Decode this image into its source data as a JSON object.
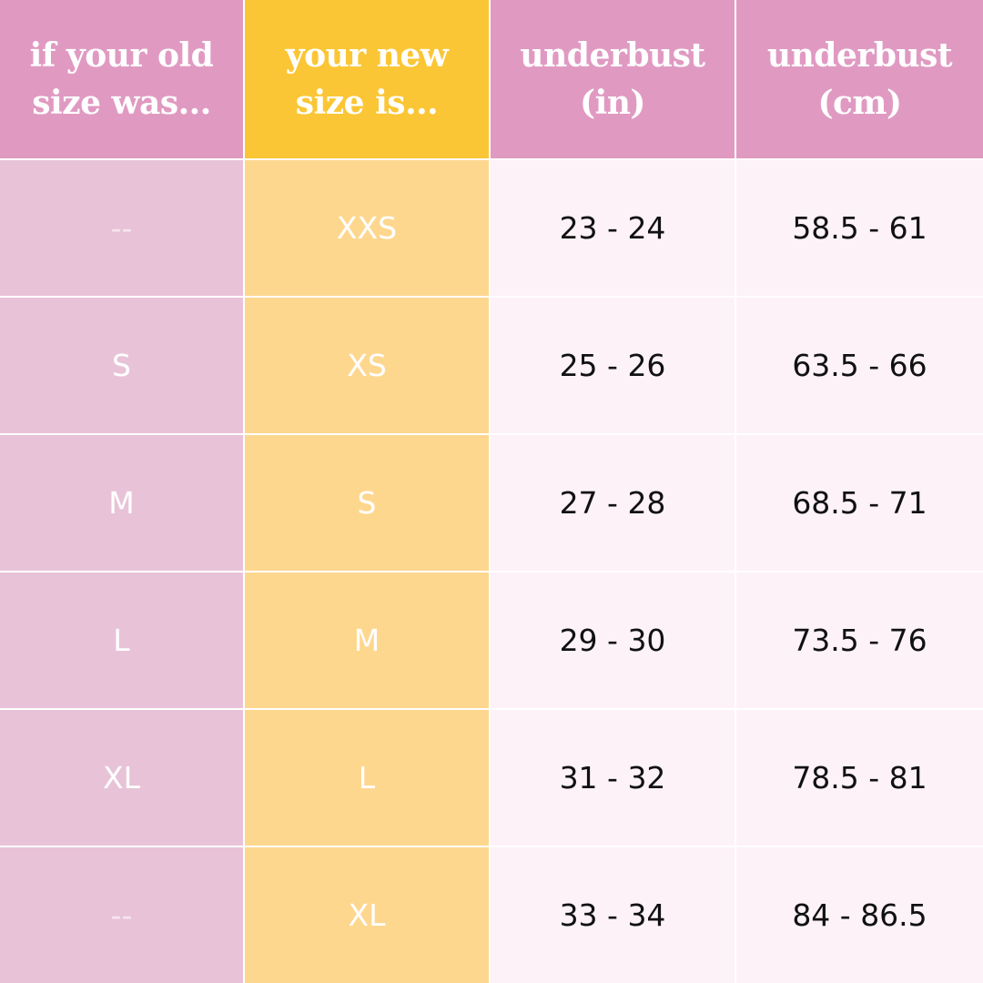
{
  "headers": {
    "old_size": [
      "if your old",
      "size was..."
    ],
    "new_size": [
      "your new",
      "size is..."
    ],
    "underbust_in": [
      "underbust",
      "(in)"
    ],
    "underbust_cm": [
      "underbust",
      "(cm)"
    ]
  },
  "rows": [
    {
      "old": "--",
      "new": "XXS",
      "in": "23 - 24",
      "cm": "58.5 - 61"
    },
    {
      "old": "S",
      "new": "XS",
      "in": "25 - 26",
      "cm": "63.5 - 66"
    },
    {
      "old": "M",
      "new": "S",
      "in": "27 - 28",
      "cm": "68.5 - 71"
    },
    {
      "old": "L",
      "new": "M",
      "in": "29 - 30",
      "cm": "73.5 - 76"
    },
    {
      "old": "XL",
      "new": "L",
      "in": "31 - 32",
      "cm": "78.5 - 81"
    },
    {
      "old": "--",
      "new": "XL",
      "in": "33 - 34",
      "cm": "84 - 86.5"
    }
  ],
  "colors": {
    "header_pink": "#e09ac2",
    "header_yellow": "#fbc635",
    "col_pink": "#e8c3d8",
    "col_yellow": "#fed78f",
    "col_light": "#fdf2f7"
  }
}
